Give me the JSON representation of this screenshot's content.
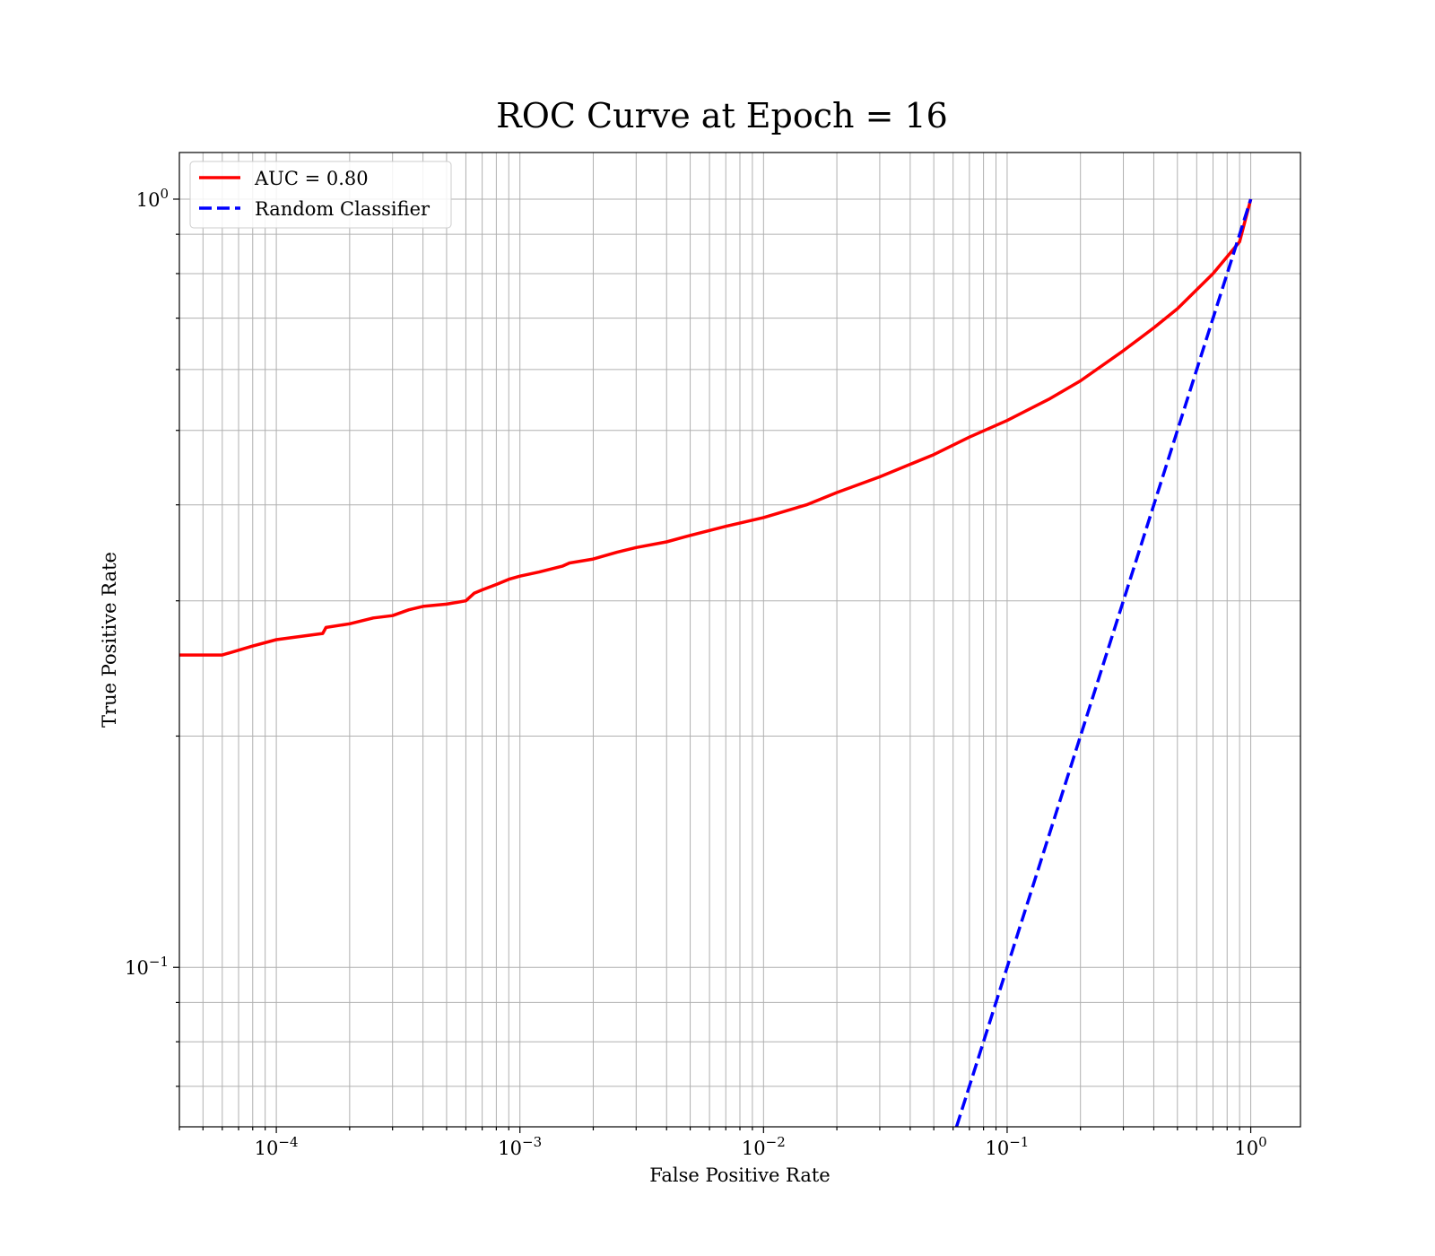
{
  "chart_data": {
    "type": "line",
    "title": "ROC Curve at Epoch = 16",
    "xlabel": "False Positive Rate",
    "ylabel": "True Positive Rate",
    "xscale": "log",
    "yscale": "log",
    "xlim": [
      4e-05,
      1.6
    ],
    "ylim": [
      0.062,
      1.15
    ],
    "grid": true,
    "grid_which": "both",
    "legend_position": "top-left",
    "x_ticks": [
      {
        "base": "10",
        "exp": "−4",
        "value": 0.0001
      },
      {
        "base": "10",
        "exp": "−3",
        "value": 0.001
      },
      {
        "base": "10",
        "exp": "−2",
        "value": 0.01
      },
      {
        "base": "10",
        "exp": "−1",
        "value": 0.1
      },
      {
        "base": "10",
        "exp": "0",
        "value": 1
      }
    ],
    "y_ticks": [
      {
        "base": "10",
        "exp": "−1",
        "value": 0.1
      },
      {
        "base": "10",
        "exp": "0",
        "value": 1
      }
    ],
    "series": [
      {
        "name": "AUC = 0.80",
        "color": "#ff0000",
        "style": "solid",
        "x": [
          4e-05,
          6e-05,
          8e-05,
          0.0001,
          0.00013,
          0.000155,
          0.00016,
          0.0002,
          0.00025,
          0.0003,
          0.00035,
          0.0004,
          0.0005,
          0.0006,
          0.00065,
          0.0007,
          0.0008,
          0.0009,
          0.001,
          0.0012,
          0.0015,
          0.0016,
          0.002,
          0.0025,
          0.003,
          0.004,
          0.005,
          0.007,
          0.01,
          0.015,
          0.02,
          0.03,
          0.05,
          0.07,
          0.1,
          0.15,
          0.2,
          0.3,
          0.4,
          0.5,
          0.7,
          0.9,
          1.0
        ],
        "y": [
          0.255,
          0.255,
          0.262,
          0.267,
          0.27,
          0.272,
          0.277,
          0.28,
          0.285,
          0.287,
          0.292,
          0.295,
          0.297,
          0.3,
          0.307,
          0.31,
          0.315,
          0.32,
          0.323,
          0.327,
          0.333,
          0.336,
          0.34,
          0.347,
          0.352,
          0.358,
          0.365,
          0.375,
          0.385,
          0.4,
          0.415,
          0.435,
          0.465,
          0.49,
          0.515,
          0.55,
          0.58,
          0.635,
          0.68,
          0.72,
          0.8,
          0.88,
          1.0
        ]
      },
      {
        "name": "Random Classifier",
        "color": "#0000ff",
        "style": "dashed",
        "x": [
          0.062,
          1.0
        ],
        "y": [
          0.062,
          1.0
        ]
      }
    ]
  }
}
